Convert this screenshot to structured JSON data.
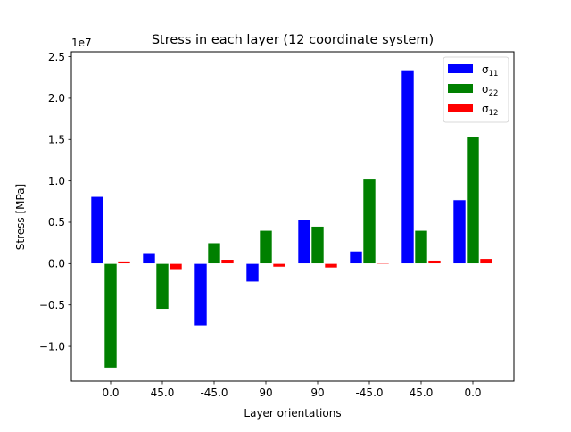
{
  "chart_data": {
    "type": "bar",
    "title": "Stress in each layer (12 coordinate system)",
    "xlabel": "Layer orientations",
    "ylabel": "Stress [MPa]",
    "y_scale_label": "1e7",
    "categories": [
      "0.0",
      "45.0",
      "-45.0",
      "90",
      "90",
      "-45.0",
      "45.0",
      "0.0"
    ],
    "ylim": [
      -1.42,
      2.56
    ],
    "yticks": [
      -1.0,
      -0.5,
      0.0,
      0.5,
      1.0,
      1.5,
      2.0,
      2.5
    ],
    "ytick_labels": [
      "−1.0",
      "−0.5",
      "0.0",
      "0.5",
      "1.0",
      "1.5",
      "2.0",
      "2.5"
    ],
    "grid": false,
    "legend_position": "top-right",
    "series": [
      {
        "name": "σ",
        "sub": "11",
        "color": "#0000ff",
        "values": [
          0.81,
          0.12,
          -0.75,
          -0.22,
          0.53,
          0.15,
          2.34,
          0.77
        ]
      },
      {
        "name": "σ",
        "sub": "22",
        "color": "#008000",
        "values": [
          -1.26,
          -0.55,
          0.25,
          0.4,
          0.45,
          1.02,
          0.4,
          1.53
        ]
      },
      {
        "name": "σ",
        "sub": "12",
        "color": "#ff0000",
        "values": [
          0.03,
          -0.07,
          0.05,
          -0.04,
          -0.05,
          -0.01,
          0.04,
          0.06
        ]
      }
    ]
  }
}
